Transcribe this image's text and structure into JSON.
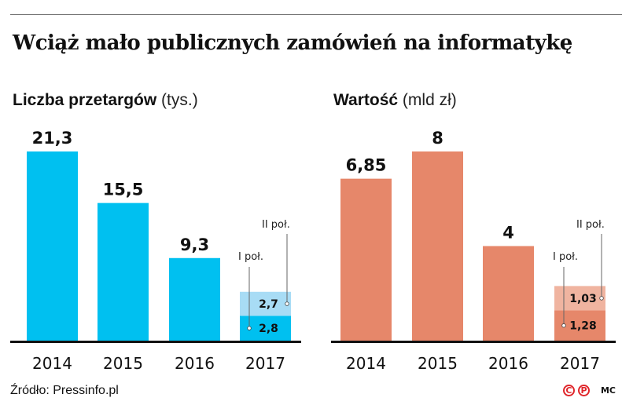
{
  "title": "Wciąż mało publicznych zamówień na informatykę",
  "footer": {
    "source": "Źródło: Pressinfo.pl",
    "copyright_icon": "C",
    "p_icon": "P",
    "author": "MC"
  },
  "colors": {
    "left_main": "#00c0f0",
    "left_h2": "#a8dcf5",
    "right_main": "#e6876a",
    "right_h2": "#f0b4a0"
  },
  "chart_data": [
    {
      "type": "bar",
      "title": "Liczba przetargów",
      "unit": "(tys.)",
      "categories": [
        "2014",
        "2015",
        "2016",
        "2017"
      ],
      "values": [
        21.3,
        15.5,
        9.3,
        5.5
      ],
      "value_labels": [
        "21,3",
        "15,5",
        "9,3",
        null
      ],
      "stacked_2017": {
        "segments": [
          {
            "name": "I poł.",
            "value": 2.8,
            "label": "2,8"
          },
          {
            "name": "II poł.",
            "value": 2.7,
            "label": "2,7"
          }
        ]
      },
      "ylim": [
        0,
        21.3
      ],
      "grid": false,
      "xlabel": "",
      "ylabel": ""
    },
    {
      "type": "bar",
      "title": "Wartość",
      "unit": "(mld zł)",
      "categories": [
        "2014",
        "2015",
        "2016",
        "2017"
      ],
      "values": [
        6.85,
        8,
        4,
        2.31
      ],
      "value_labels": [
        "6,85",
        "8",
        "4",
        null
      ],
      "stacked_2017": {
        "segments": [
          {
            "name": "I poł.",
            "value": 1.28,
            "label": "1,28"
          },
          {
            "name": "II poł.",
            "value": 1.03,
            "label": "1,03"
          }
        ]
      },
      "ylim": [
        0,
        8
      ],
      "grid": false,
      "xlabel": "",
      "ylabel": ""
    }
  ]
}
